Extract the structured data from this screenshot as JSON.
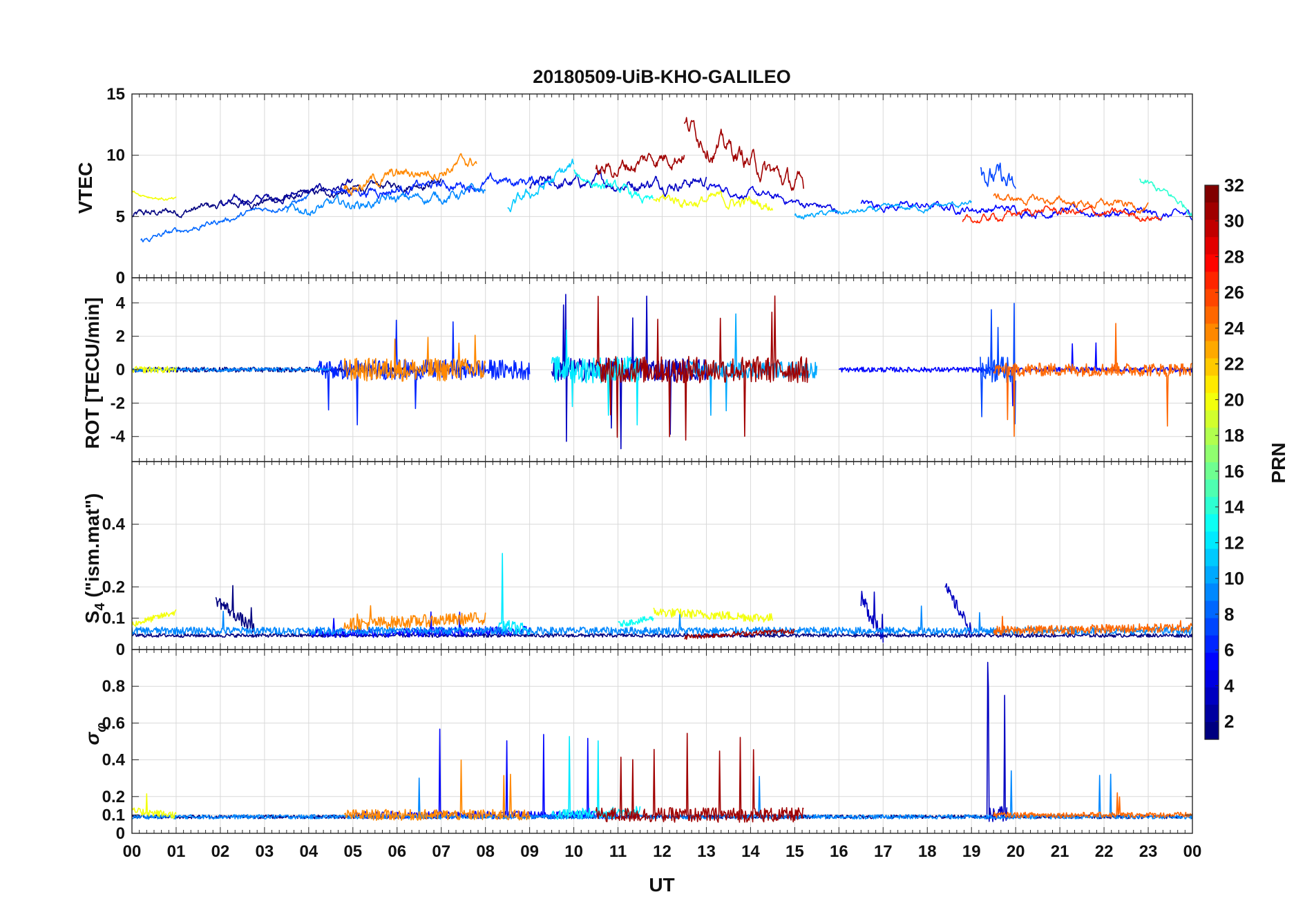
{
  "chart_data": {
    "type": "line",
    "title": "20180509-UiB-KHO-GALILEO",
    "xlabel": "UT",
    "x_ticks": [
      "00",
      "01",
      "02",
      "03",
      "04",
      "05",
      "06",
      "07",
      "08",
      "09",
      "10",
      "11",
      "12",
      "13",
      "14",
      "15",
      "16",
      "17",
      "18",
      "19",
      "20",
      "21",
      "22",
      "23",
      "00"
    ],
    "xlim_hours": [
      0,
      24
    ],
    "colorbar": {
      "label": "PRN",
      "range": [
        1,
        32
      ],
      "ticks": [
        "2",
        "4",
        "6",
        "8",
        "10",
        "12",
        "14",
        "16",
        "18",
        "20",
        "22",
        "24",
        "26",
        "28",
        "30",
        "32"
      ],
      "colormap": "jet"
    },
    "panels": [
      {
        "id": "vtec",
        "ylabel": "VTEC",
        "ylim": [
          0,
          15
        ],
        "yticks": [
          0,
          5,
          10,
          15
        ],
        "ytick_labels": [
          "0",
          "5",
          "10",
          "15"
        ],
        "series": [
          {
            "prn": 1,
            "start": 0.0,
            "end": 7.0,
            "y0": 5.0,
            "y1": 8.0,
            "noise": 0.4,
            "spikes": 0
          },
          {
            "prn": 2,
            "start": 2.0,
            "end": 5.0,
            "y0": 6.0,
            "y1": 7.5,
            "noise": 0.4,
            "spikes": 0
          },
          {
            "prn": 3,
            "start": 9.0,
            "end": 13.0,
            "y0": 7.5,
            "y1": 8.0,
            "noise": 0.6,
            "spikes": 0
          },
          {
            "prn": 4,
            "start": 13.0,
            "end": 16.0,
            "y0": 7.5,
            "y1": 5.5,
            "noise": 0.4,
            "spikes": 0
          },
          {
            "prn": 5,
            "start": 16.5,
            "end": 24.0,
            "y0": 6.0,
            "y1": 5.0,
            "noise": 0.4,
            "spikes": 0
          },
          {
            "prn": 6,
            "start": 4.5,
            "end": 9.5,
            "y0": 7.0,
            "y1": 8.0,
            "noise": 0.5,
            "spikes": 0
          },
          {
            "prn": 7,
            "start": 19.2,
            "end": 20.0,
            "y0": 9.5,
            "y1": 6.5,
            "noise": 1.2,
            "spikes": 0
          },
          {
            "prn": 8,
            "start": 0.2,
            "end": 4.0,
            "y0": 3.0,
            "y1": 6.5,
            "noise": 0.3,
            "spikes": 0
          },
          {
            "prn": 9,
            "start": 3.5,
            "end": 8.0,
            "y0": 5.5,
            "y1": 7.0,
            "noise": 0.5,
            "spikes": 0
          },
          {
            "prn": 10,
            "start": 15.0,
            "end": 19.0,
            "y0": 5.0,
            "y1": 6.0,
            "noise": 0.3,
            "spikes": 0
          },
          {
            "prn": 11,
            "start": 8.5,
            "end": 10.0,
            "y0": 5.5,
            "y1": 9.0,
            "noise": 0.6,
            "spikes": 0
          },
          {
            "prn": 13,
            "start": 10.0,
            "end": 11.8,
            "y0": 8.5,
            "y1": 6.0,
            "noise": 0.5,
            "spikes": 0
          },
          {
            "prn": 14,
            "start": 22.8,
            "end": 24.0,
            "y0": 8.0,
            "y1": 5.5,
            "noise": 0.4,
            "spikes": 0
          },
          {
            "prn": 20,
            "start": 0.0,
            "end": 1.0,
            "y0": 7.0,
            "y1": 6.3,
            "noise": 0.2,
            "spikes": 0
          },
          {
            "prn": 20,
            "start": 11.8,
            "end": 14.5,
            "y0": 6.5,
            "y1": 6.0,
            "noise": 0.6,
            "spikes": 0
          },
          {
            "prn": 24,
            "start": 4.8,
            "end": 7.8,
            "y0": 7.5,
            "y1": 9.5,
            "noise": 0.6,
            "spikes": 0
          },
          {
            "prn": 25,
            "start": 19.5,
            "end": 23.0,
            "y0": 6.5,
            "y1": 5.8,
            "noise": 0.4,
            "spikes": 0
          },
          {
            "prn": 27,
            "start": 18.8,
            "end": 20.5,
            "y0": 4.5,
            "y1": 5.5,
            "noise": 0.4,
            "spikes": 0
          },
          {
            "prn": 27,
            "start": 20.5,
            "end": 23.3,
            "y0": 5.5,
            "y1": 5.0,
            "noise": 0.4,
            "spikes": 0
          },
          {
            "prn": 31,
            "start": 10.5,
            "end": 12.5,
            "y0": 8.5,
            "y1": 10.5,
            "noise": 0.8,
            "spikes": 0
          },
          {
            "prn": 31,
            "start": 12.5,
            "end": 15.2,
            "y0": 12.5,
            "y1": 7.0,
            "noise": 1.0,
            "spikes": 0
          }
        ]
      },
      {
        "id": "rot",
        "ylabel": "ROT [TECU/min]",
        "ylim": [
          -5.5,
          5.5
        ],
        "yticks": [
          -4,
          -2,
          0,
          2,
          4
        ],
        "ytick_labels": [
          "-4",
          "-2",
          "0",
          "2",
          "4"
        ],
        "top_label": "0",
        "series": [
          {
            "prn": 1,
            "start": 0.0,
            "end": 7.5,
            "y0": 0,
            "y1": 0,
            "noise": 0.15,
            "spikes": 0
          },
          {
            "prn": 3,
            "start": 9.5,
            "end": 13.0,
            "y0": 0,
            "y1": 0,
            "noise": 0.7,
            "spikes": 8,
            "amp": 5.0
          },
          {
            "prn": 5,
            "start": 16.0,
            "end": 24.0,
            "y0": 0,
            "y1": 0,
            "noise": 0.15,
            "spikes": 3,
            "amp": 2.5
          },
          {
            "prn": 6,
            "start": 4.2,
            "end": 9.0,
            "y0": 0,
            "y1": 0,
            "noise": 0.6,
            "spikes": 5,
            "amp": 3.5
          },
          {
            "prn": 7,
            "start": 19.2,
            "end": 20.0,
            "y0": 0,
            "y1": 0,
            "noise": 0.8,
            "spikes": 5,
            "amp": 4.0
          },
          {
            "prn": 9,
            "start": 0.0,
            "end": 4.5,
            "y0": 0,
            "y1": 0,
            "noise": 0.12,
            "spikes": 0
          },
          {
            "prn": 10,
            "start": 12.5,
            "end": 15.5,
            "y0": 0,
            "y1": 0,
            "noise": 0.5,
            "spikes": 3,
            "amp": 4.0
          },
          {
            "prn": 12,
            "start": 9.5,
            "end": 11.5,
            "y0": 0,
            "y1": 0,
            "noise": 0.8,
            "spikes": 4,
            "amp": 3.5
          },
          {
            "prn": 20,
            "start": 0.0,
            "end": 1.0,
            "y0": 0,
            "y1": 0,
            "noise": 0.2,
            "spikes": 0
          },
          {
            "prn": 24,
            "start": 4.8,
            "end": 8.0,
            "y0": 0,
            "y1": 0,
            "noise": 0.7,
            "spikes": 4,
            "amp": 2.5
          },
          {
            "prn": 25,
            "start": 19.5,
            "end": 24.0,
            "y0": 0,
            "y1": 0,
            "noise": 0.4,
            "spikes": 4,
            "amp": 4.5
          },
          {
            "prn": 31,
            "start": 10.5,
            "end": 15.3,
            "y0": 0,
            "y1": 0,
            "noise": 0.8,
            "spikes": 10,
            "amp": 4.5
          }
        ]
      },
      {
        "id": "s4",
        "ylabel": "S4 (\"ism.mat\")",
        "ylim": [
          0,
          0.6
        ],
        "yticks": [
          0.1,
          0.2,
          0.4
        ],
        "ytick_labels": [
          "0.1",
          "0.2",
          "0.4"
        ],
        "bottom_label": "0",
        "series": [
          {
            "prn": 1,
            "start": 1.9,
            "end": 2.8,
            "y0": 0.16,
            "y1": 0.06,
            "noise": 0.02,
            "spikes": 2,
            "amp": 0.08
          },
          {
            "prn": 1,
            "start": 0.0,
            "end": 24.0,
            "y0": 0.045,
            "y1": 0.045,
            "noise": 0.006,
            "spikes": 0
          },
          {
            "prn": 3,
            "start": 16.5,
            "end": 17.0,
            "y0": 0.16,
            "y1": 0.05,
            "noise": 0.03,
            "spikes": 2,
            "amp": 0.1
          },
          {
            "prn": 3,
            "start": 18.4,
            "end": 19.0,
            "y0": 0.2,
            "y1": 0.06,
            "noise": 0.02,
            "spikes": 0
          },
          {
            "prn": 5,
            "start": 4.0,
            "end": 9.0,
            "y0": 0.05,
            "y1": 0.06,
            "noise": 0.015,
            "spikes": 3,
            "amp": 0.06
          },
          {
            "prn": 9,
            "start": 0.0,
            "end": 24.0,
            "y0": 0.06,
            "y1": 0.06,
            "noise": 0.012,
            "spikes": 4,
            "amp": 0.08
          },
          {
            "prn": 12,
            "start": 8.3,
            "end": 9.0,
            "y0": 0.08,
            "y1": 0.06,
            "noise": 0.02,
            "spikes": 1,
            "amp": 0.25
          },
          {
            "prn": 13,
            "start": 11.0,
            "end": 11.8,
            "y0": 0.08,
            "y1": 0.1,
            "noise": 0.01,
            "spikes": 0
          },
          {
            "prn": 20,
            "start": 0.0,
            "end": 1.0,
            "y0": 0.08,
            "y1": 0.12,
            "noise": 0.01,
            "spikes": 0
          },
          {
            "prn": 20,
            "start": 11.8,
            "end": 14.5,
            "y0": 0.12,
            "y1": 0.1,
            "noise": 0.015,
            "spikes": 0
          },
          {
            "prn": 24,
            "start": 4.8,
            "end": 8.0,
            "y0": 0.08,
            "y1": 0.1,
            "noise": 0.02,
            "spikes": 2,
            "amp": 0.06
          },
          {
            "prn": 25,
            "start": 19.5,
            "end": 24.0,
            "y0": 0.06,
            "y1": 0.07,
            "noise": 0.015,
            "spikes": 2,
            "amp": 0.05
          },
          {
            "prn": 31,
            "start": 12.5,
            "end": 15.0,
            "y0": 0.04,
            "y1": 0.06,
            "noise": 0.008,
            "spikes": 0
          }
        ]
      },
      {
        "id": "sigphi",
        "ylabel": "σφ",
        "ylim": [
          0,
          1.0
        ],
        "yticks": [
          0,
          0.1,
          0.2,
          0.4,
          0.6,
          0.8
        ],
        "ytick_labels": [
          "0",
          "0.1",
          "0.2",
          "0.4",
          "0.6",
          "0.8"
        ],
        "series": [
          {
            "prn": 1,
            "start": 0.0,
            "end": 24.0,
            "y0": 0.09,
            "y1": 0.09,
            "noise": 0.01,
            "spikes": 0
          },
          {
            "prn": 3,
            "start": 19.3,
            "end": 19.8,
            "y0": 0.1,
            "y1": 0.1,
            "noise": 0.05,
            "spikes": 3,
            "amp": 0.85
          },
          {
            "prn": 5,
            "start": 5.0,
            "end": 11.0,
            "y0": 0.1,
            "y1": 0.1,
            "noise": 0.02,
            "spikes": 4,
            "amp": 0.5
          },
          {
            "prn": 9,
            "start": 0.0,
            "end": 24.0,
            "y0": 0.09,
            "y1": 0.09,
            "noise": 0.012,
            "spikes": 5,
            "amp": 0.3
          },
          {
            "prn": 12,
            "start": 9.5,
            "end": 11.5,
            "y0": 0.1,
            "y1": 0.12,
            "noise": 0.03,
            "spikes": 3,
            "amp": 0.45
          },
          {
            "prn": 20,
            "start": 0.0,
            "end": 1.0,
            "y0": 0.12,
            "y1": 0.1,
            "noise": 0.02,
            "spikes": 1,
            "amp": 0.15
          },
          {
            "prn": 24,
            "start": 4.8,
            "end": 9.0,
            "y0": 0.1,
            "y1": 0.1,
            "noise": 0.03,
            "spikes": 3,
            "amp": 0.3
          },
          {
            "prn": 25,
            "start": 19.5,
            "end": 24.0,
            "y0": 0.1,
            "y1": 0.1,
            "noise": 0.015,
            "spikes": 2,
            "amp": 0.12
          },
          {
            "prn": 31,
            "start": 10.5,
            "end": 15.2,
            "y0": 0.1,
            "y1": 0.1,
            "noise": 0.04,
            "spikes": 7,
            "amp": 0.45
          }
        ]
      }
    ]
  }
}
